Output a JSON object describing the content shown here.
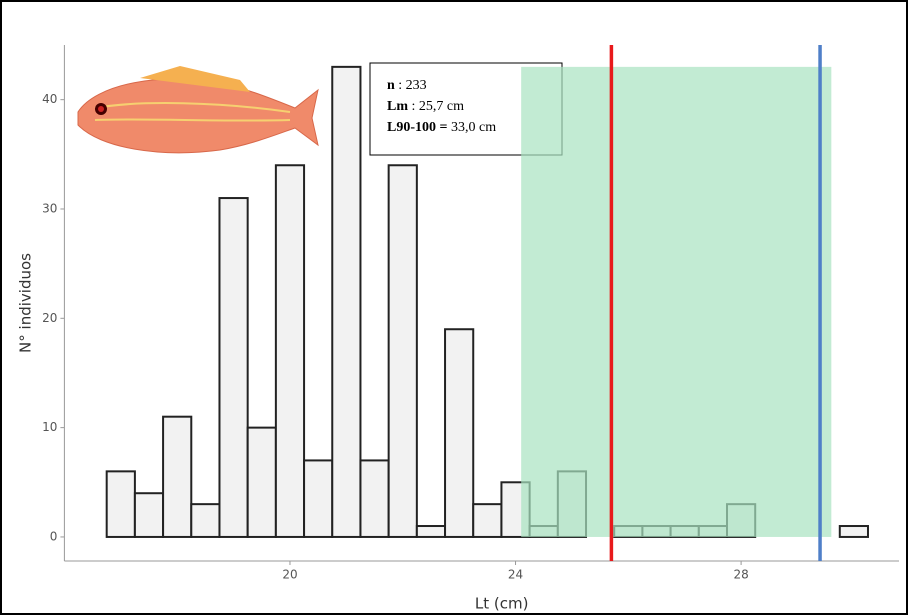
{
  "chart_data": {
    "type": "histogram",
    "x_label": "Lt (cm)",
    "y_label": "N° individuos",
    "bins": [
      16.75,
      17.25,
      17.75,
      18.25,
      18.75,
      19.25,
      19.75,
      20.25,
      20.75,
      21.25,
      21.75,
      22.25,
      22.75,
      23.25,
      23.75,
      24.25,
      24.75,
      25.25,
      25.75,
      26.25,
      26.75,
      27.25,
      27.75,
      28.25,
      28.75,
      29.25,
      29.75,
      30.25
    ],
    "values": [
      6,
      4,
      11,
      3,
      31,
      10,
      34,
      7,
      43,
      7,
      34,
      1,
      19,
      3,
      5,
      1,
      6,
      0,
      1,
      1,
      1,
      1,
      3,
      0,
      0,
      0,
      1
    ],
    "color": "#f2f2f2",
    "edge_color": "#222222",
    "xlim": [
      16,
      30.8
    ],
    "ylim": [
      -2.2,
      45
    ],
    "xticks": [
      20,
      24,
      28
    ],
    "yticks": [
      0,
      10,
      20,
      30,
      40
    ],
    "grid": false,
    "shaded_region": {
      "x": [
        24.1,
        29.6
      ],
      "y": [
        0,
        43
      ],
      "color": "#a8e2c0"
    },
    "vlines": [
      {
        "value": 25.7,
        "color": "#e8191b"
      },
      {
        "value": 29.4,
        "color": "#4f7fc8"
      }
    ],
    "annotation": [
      {
        "key": "n",
        "text": " : 233"
      },
      {
        "key": "Lm",
        "text": " : 25,7 cm"
      },
      {
        "key": "L90-100 =",
        "text": " 33,0 cm"
      }
    ]
  }
}
